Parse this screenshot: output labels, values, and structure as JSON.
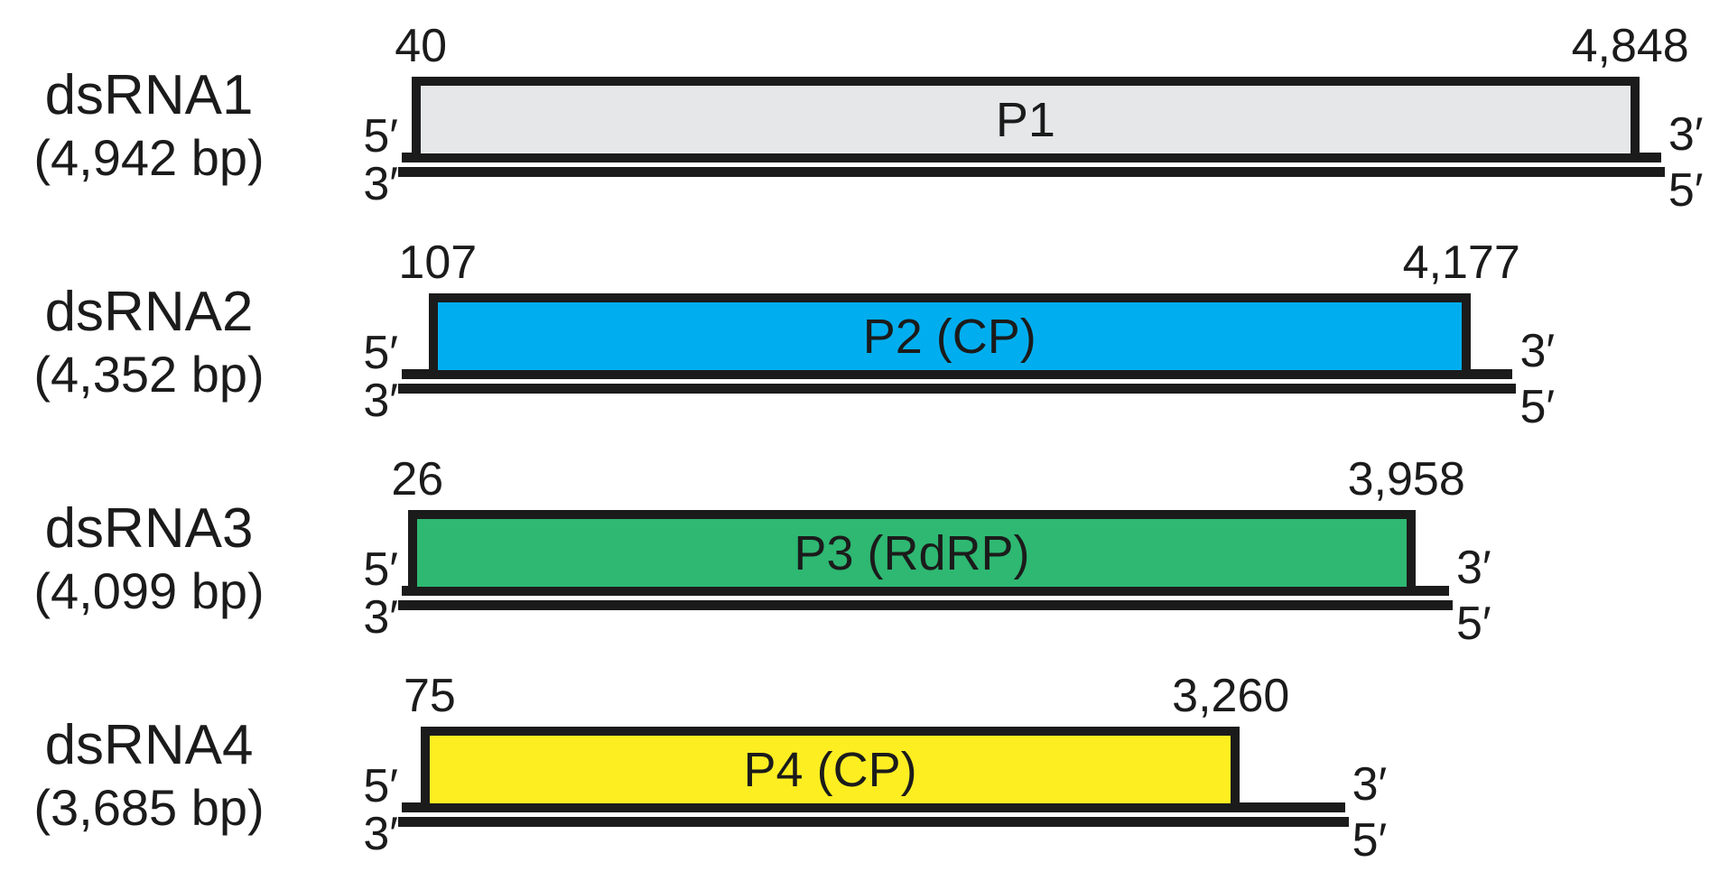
{
  "figure": {
    "kind": "dsRNA-genome-segment-diagram",
    "outline_color": "#1b1b1b",
    "background_color": "#ffffff"
  },
  "strand_labels": {
    "left_top": "5′",
    "left_bottom": "3′",
    "right_top": "3′",
    "right_bottom": "5′"
  },
  "segments": [
    {
      "name": "dsRNA1",
      "size_label": "(4,942 bp)",
      "bp": 4942,
      "orf": {
        "label": "P1",
        "start": 40,
        "end": 4848,
        "start_label": "40",
        "end_label": "4,848",
        "color": "#e6e7e8"
      }
    },
    {
      "name": "dsRNA2",
      "size_label": "(4,352 bp)",
      "bp": 4352,
      "orf": {
        "label": "P2 (CP)",
        "start": 107,
        "end": 4177,
        "start_label": "107",
        "end_label": "4,177",
        "color": "#00aeef"
      }
    },
    {
      "name": "dsRNA3",
      "size_label": "(4,099 bp)",
      "bp": 4099,
      "orf": {
        "label": "P3 (RdRP)",
        "start": 26,
        "end": 3958,
        "start_label": "26",
        "end_label": "3,958",
        "color": "#2eb872"
      }
    },
    {
      "name": "dsRNA4",
      "size_label": "(3,685 bp)",
      "bp": 3685,
      "orf": {
        "label": "P4 (CP)",
        "start": 75,
        "end": 3260,
        "start_label": "75",
        "end_label": "3,260",
        "color": "#fcee21"
      }
    }
  ]
}
